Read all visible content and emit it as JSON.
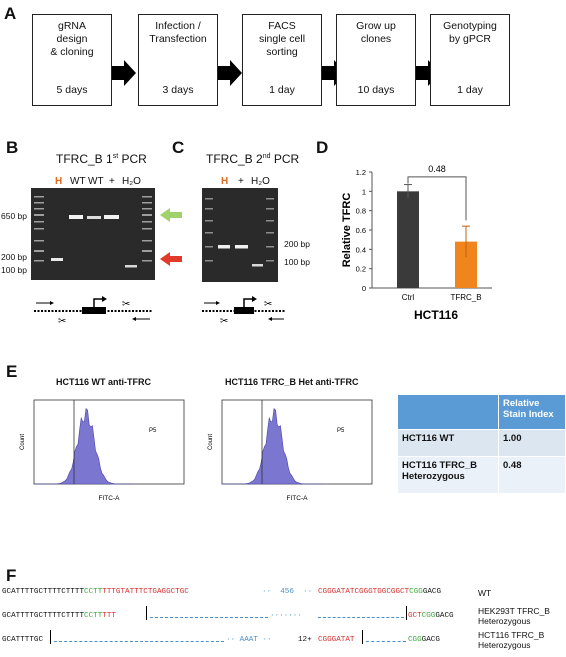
{
  "panelA": {
    "label": "A",
    "steps": [
      {
        "title": "gRNA\ndesign\n& cloning",
        "days": "5 days"
      },
      {
        "title": "Infection /\nTransfection",
        "days": "3 days"
      },
      {
        "title": "FACS\nsingle cell\nsorting",
        "days": "1 day"
      },
      {
        "title": "Grow up\nclones",
        "days": "10 days"
      },
      {
        "title": "Genotyping\nby gPCR",
        "days": "1 day"
      }
    ]
  },
  "panelB": {
    "label": "B",
    "title_main": "TFRC_B 1",
    "title_sup": "st",
    "title_end": " PCR",
    "lanes": {
      "h": "H",
      "wt1": "WT",
      "wt2": "WT",
      "plus": "+",
      "water": "H₂O"
    },
    "bp_labels": {
      "b650": "650 bp",
      "b200": "200 bp",
      "b100": "100 bp"
    }
  },
  "panelC": {
    "label": "C",
    "title_main": "TFRC_B 2",
    "title_sup": "nd",
    "title_end": " PCR",
    "lanes": {
      "h": "H",
      "plus": "+",
      "water": "H₂O"
    },
    "bp_labels": {
      "b200": "200 bp",
      "b100": "100 bp"
    }
  },
  "panelD": {
    "label": "D",
    "cell_line": "HCT116",
    "pvalue": "0.48",
    "ylabel": "Relative TFRC",
    "yticks": [
      "0",
      "0.2",
      "0.4",
      "0.6",
      "0.8",
      "1",
      "1.2"
    ]
  },
  "chart_data": {
    "type": "bar",
    "categories": [
      "Ctrl",
      "TFRC_B"
    ],
    "values": [
      1.0,
      0.48
    ],
    "errors": [
      0.07,
      0.16
    ],
    "ylabel": "Relative TFRC",
    "xlabel": "HCT116",
    "ylim": [
      0,
      1.2
    ],
    "annotation": "0.48",
    "colors": [
      "#3a3a3a",
      "#f0851e"
    ]
  },
  "panelE": {
    "label": "E",
    "hist1_title": "HCT116 WT anti-TFRC",
    "hist2_title": "HCT116 TFRC_B Het anti-TFRC",
    "gate": "P5",
    "ylabel": "Count",
    "xlabel": "FITC-A",
    "table": {
      "header": [
        "",
        "Relative\nStain Index"
      ],
      "rows": [
        {
          "name": "HCT116 WT",
          "value": "1.00"
        },
        {
          "name": "HCT116 TFRC_B\nHeterozygous",
          "value": "0.48"
        }
      ]
    }
  },
  "panelF": {
    "label": "F",
    "wt": {
      "s1": "GCATTTTGCTTTTCTTTT",
      "s2": "CCTT",
      "s3": "TTTGTATTTCTGAGGCTGC",
      "gap": "··  456  ··",
      "s4": "CGGGATATCGGGTGGCGGCT",
      "s5": "CGG",
      "s6": "GACG",
      "label": "WT"
    },
    "hek": {
      "s1": "GCATTTTGCTTTTCTTTT",
      "s2": "CCTT",
      "s3": "TTT",
      "dots": "·······",
      "s4": "GCT",
      "s5": "CGG",
      "s6": "GACG",
      "label": "HEK293T TFRC_B\nHeterozygous"
    },
    "hct": {
      "s1": "GCATTTTGC",
      "mid": "AAAT",
      "ins": "12+",
      "s4": "CGGGATAT",
      "s5": "CGG",
      "s6": "GACG",
      "label": "HCT116 TFRC_B\nHeterozygous"
    }
  },
  "colors": {
    "red_seq": "#d62f2f",
    "green_seq": "#3aaa35",
    "blue_gap": "#4a90c8",
    "orange": "#f0851e",
    "hist_fill": "#7b76d0"
  }
}
